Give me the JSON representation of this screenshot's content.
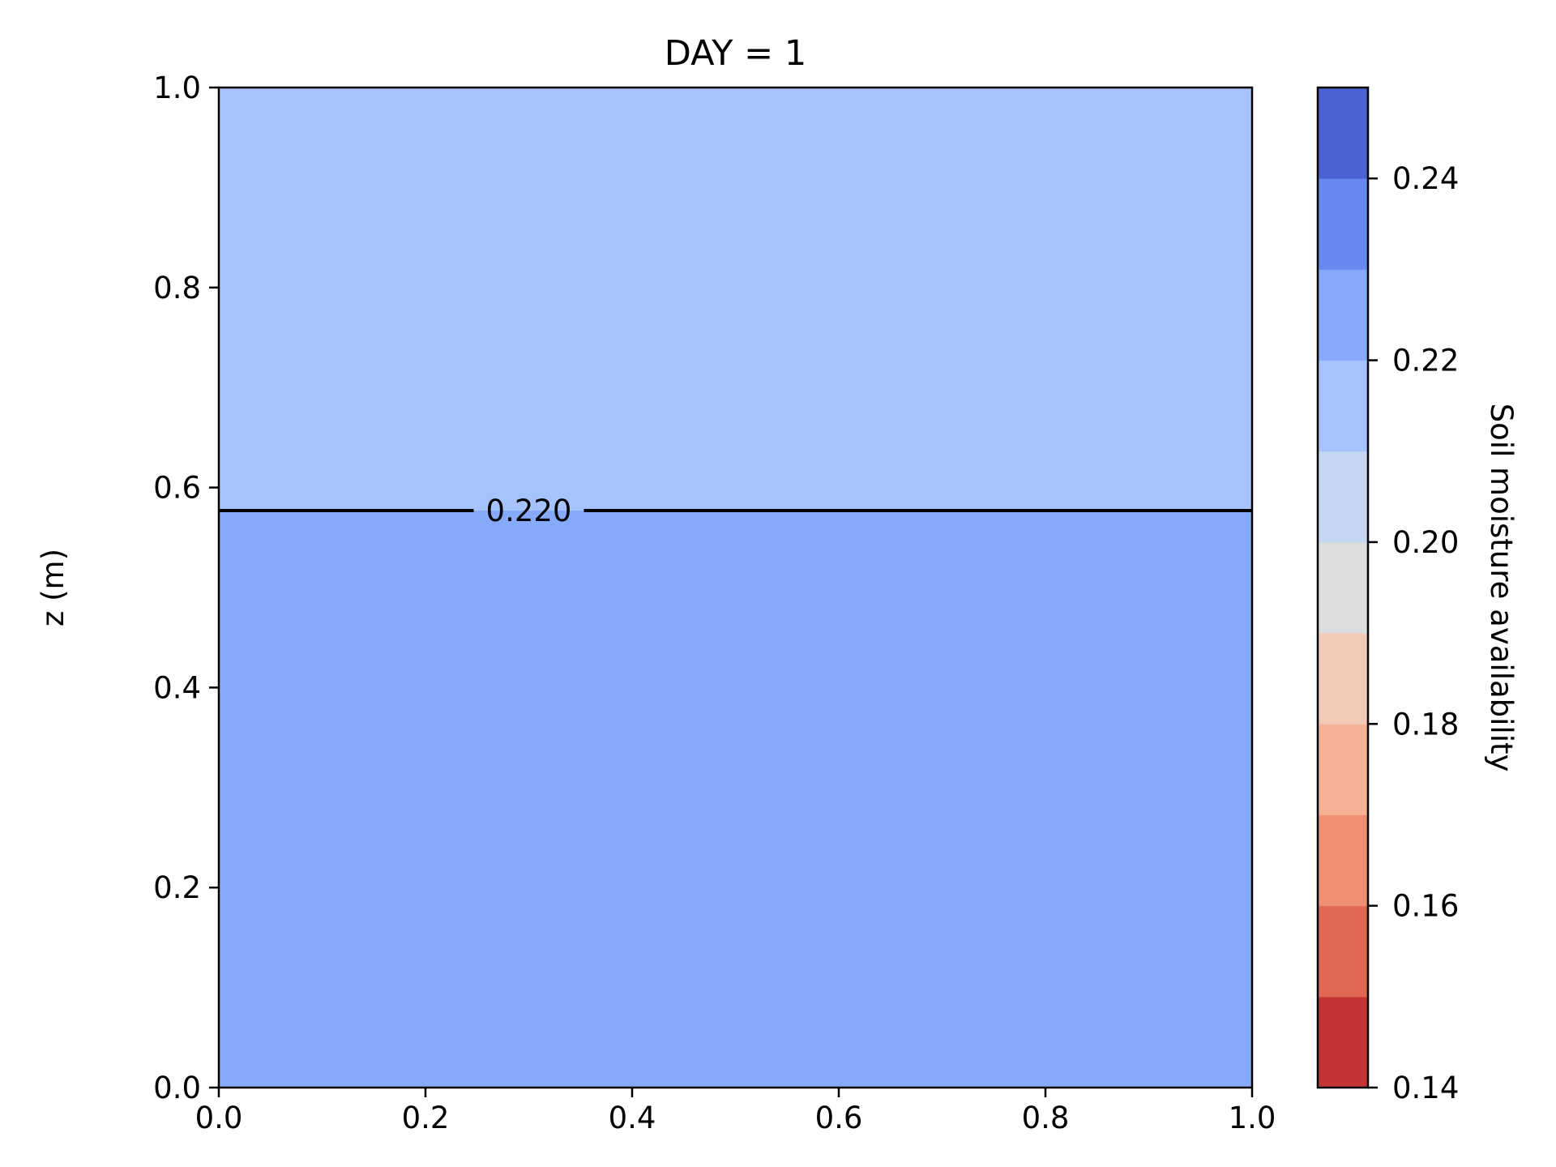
{
  "chart_data": {
    "type": "heatmap",
    "title": "DAY = 1",
    "xlabel": "",
    "ylabel": "z (m)",
    "xlim": [
      0.0,
      1.0
    ],
    "ylim": [
      0.0,
      1.0
    ],
    "x_ticks": [
      "0.0",
      "0.2",
      "0.4",
      "0.6",
      "0.8",
      "1.0"
    ],
    "y_ticks": [
      "0.0",
      "0.2",
      "0.4",
      "0.6",
      "0.8",
      "1.0"
    ],
    "grid": false,
    "regions": [
      {
        "z_from": 0.0,
        "z_to": 0.577,
        "level_range": [
          0.22,
          0.23
        ],
        "color": "#86a9fa"
      },
      {
        "z_from": 0.577,
        "z_to": 1.0,
        "level_range": [
          0.21,
          0.22
        ],
        "color": "#a6c3fe"
      }
    ],
    "contours": [
      {
        "z": 0.577,
        "level_label": "0.220",
        "label_x": 0.3
      }
    ],
    "colorbar": {
      "label": "Soil moisture availability",
      "range": [
        0.14,
        0.25
      ],
      "levels": [
        0.14,
        0.15,
        0.16,
        0.17,
        0.18,
        0.19,
        0.2,
        0.21,
        0.22,
        0.23,
        0.24,
        0.25
      ],
      "colors": [
        "#c53334",
        "#e06753",
        "#f08f71",
        "#f5b193",
        "#f2cbb7",
        "#dcdddd",
        "#c5d6f2",
        "#a6c3fe",
        "#86a9fa",
        "#6788ee",
        "#4b62d2"
      ],
      "ticks": [
        "0.14",
        "0.16",
        "0.18",
        "0.20",
        "0.22",
        "0.24"
      ]
    }
  }
}
